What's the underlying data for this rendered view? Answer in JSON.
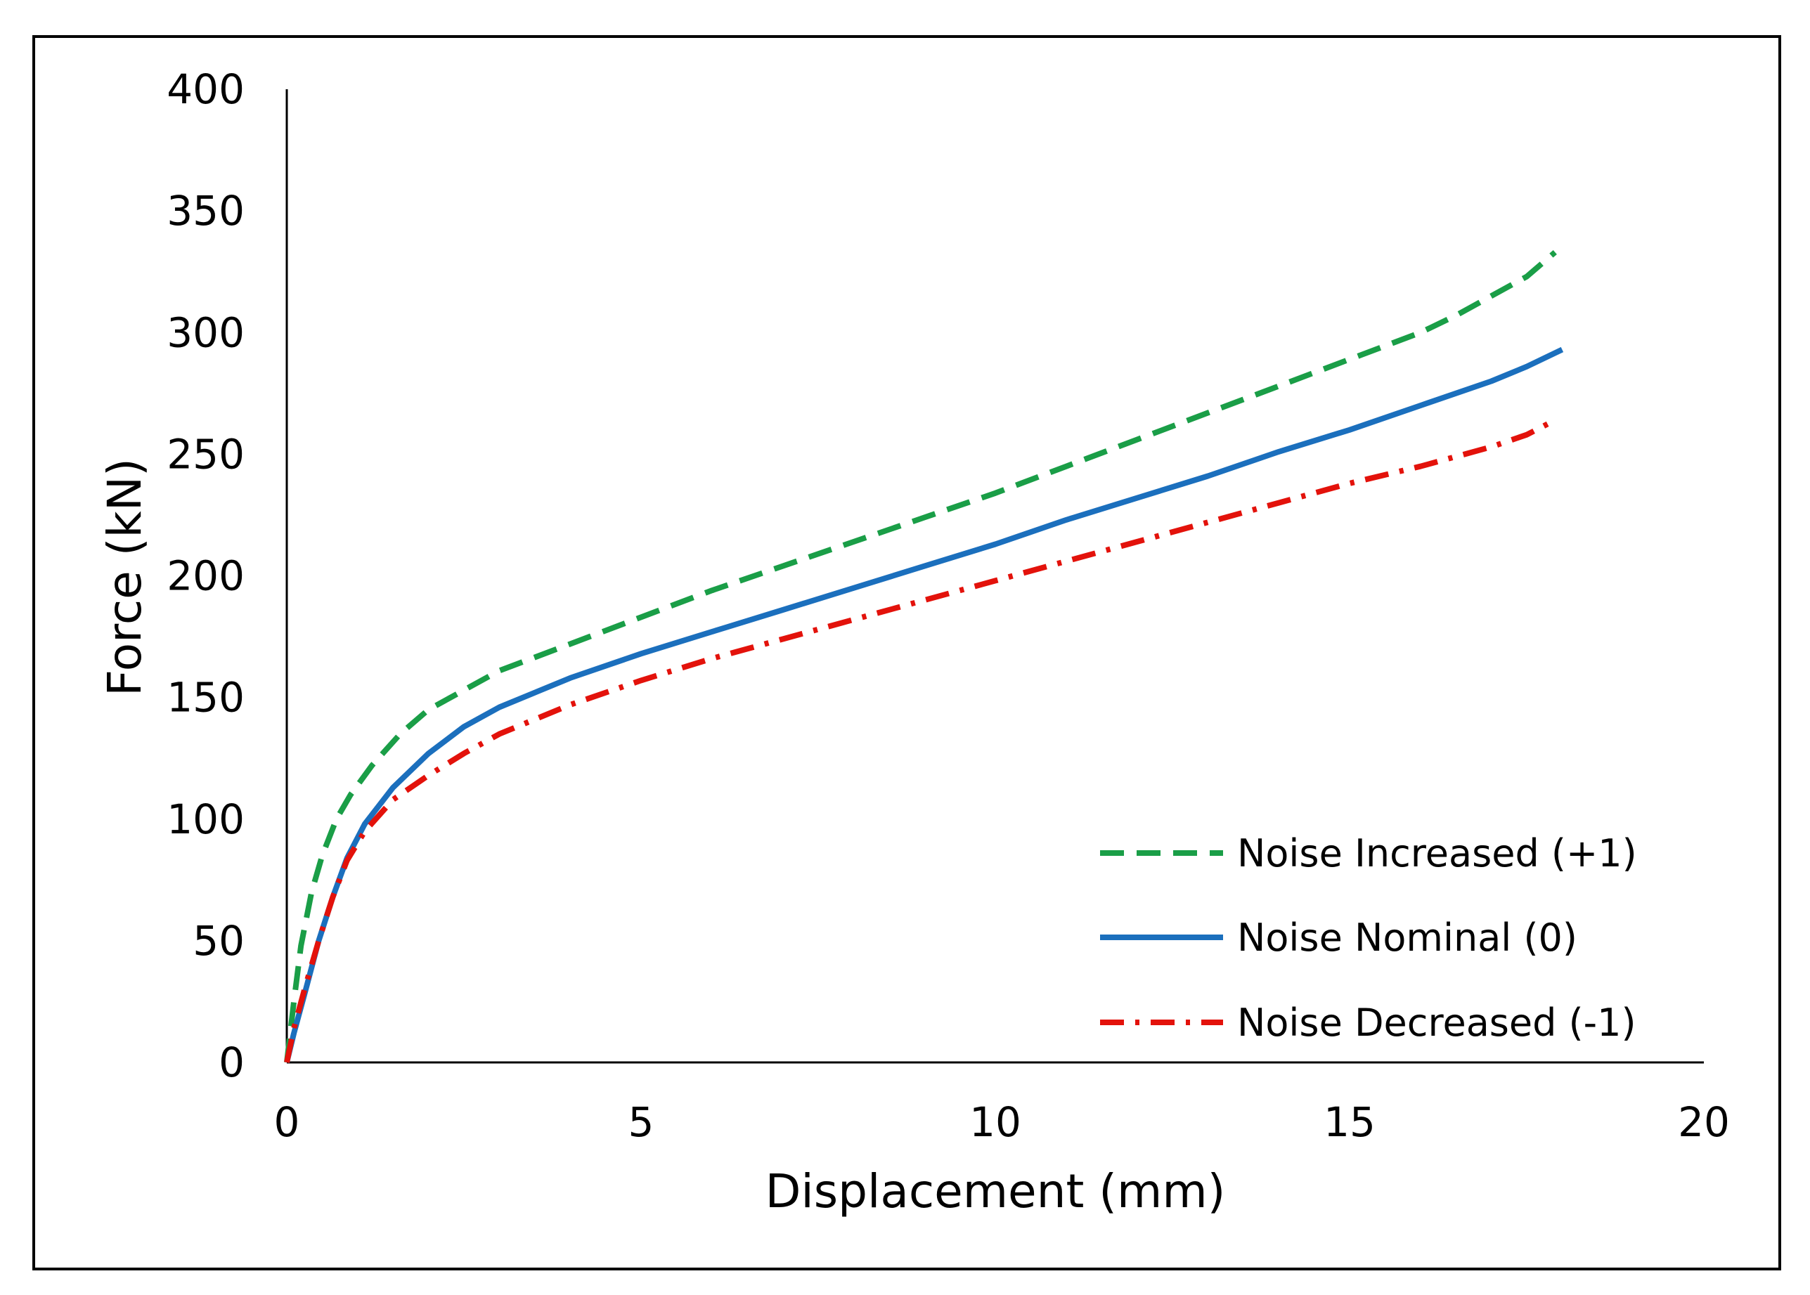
{
  "chart_data": {
    "type": "line",
    "title": "",
    "xlabel": "Displacement (mm)",
    "ylabel": "Force (kN)",
    "xlim": [
      0,
      20
    ],
    "ylim": [
      0,
      400
    ],
    "xticks": [
      0,
      5,
      10,
      15,
      20
    ],
    "yticks": [
      0,
      50,
      100,
      150,
      200,
      250,
      300,
      350,
      400
    ],
    "grid": false,
    "legend_position": "bottom-right",
    "series": [
      {
        "name": "Noise Increased (+1)",
        "color": "#1a9e47",
        "style": "dashed",
        "x": [
          0,
          0.1,
          0.2,
          0.35,
          0.5,
          0.7,
          0.9,
          1.2,
          1.6,
          2,
          2.5,
          3,
          4,
          5,
          6,
          7,
          8,
          9,
          10,
          11,
          12,
          13,
          14,
          15,
          16,
          16.5,
          17,
          17.5,
          17.9
        ],
        "y": [
          0,
          25,
          48,
          70,
          85,
          100,
          110,
          122,
          135,
          145,
          153,
          161,
          172,
          183,
          194,
          204,
          214,
          224,
          234,
          245,
          256,
          267,
          278,
          289,
          300,
          307,
          315,
          323,
          333
        ]
      },
      {
        "name": "Noise Nominal (0)",
        "color": "#1b6fbd",
        "style": "solid",
        "x": [
          0,
          0.1,
          0.25,
          0.45,
          0.65,
          0.85,
          1.1,
          1.5,
          2,
          2.5,
          3,
          4,
          5,
          6,
          7,
          8,
          9,
          10,
          11,
          12,
          13,
          14,
          15,
          16,
          17,
          17.5,
          18
        ],
        "y": [
          0,
          12,
          28,
          50,
          68,
          84,
          98,
          113,
          127,
          138,
          146,
          158,
          168,
          177,
          186,
          195,
          204,
          213,
          223,
          232,
          241,
          251,
          260,
          270,
          280,
          286,
          293
        ]
      },
      {
        "name": "Noise Decreased (-1)",
        "color": "#e3120b",
        "style": "dashdot",
        "x": [
          0,
          0.1,
          0.25,
          0.45,
          0.65,
          0.85,
          1.1,
          1.5,
          2,
          2.5,
          3,
          4,
          5,
          6,
          7,
          8,
          9,
          10,
          11,
          12,
          13,
          14,
          15,
          16,
          17,
          17.5,
          17.9
        ],
        "y": [
          0,
          14,
          30,
          50,
          68,
          83,
          95,
          108,
          118,
          127,
          135,
          147,
          157,
          166,
          174,
          182,
          190,
          198,
          206,
          214,
          222,
          230,
          238,
          245,
          253,
          258,
          264
        ]
      }
    ]
  }
}
